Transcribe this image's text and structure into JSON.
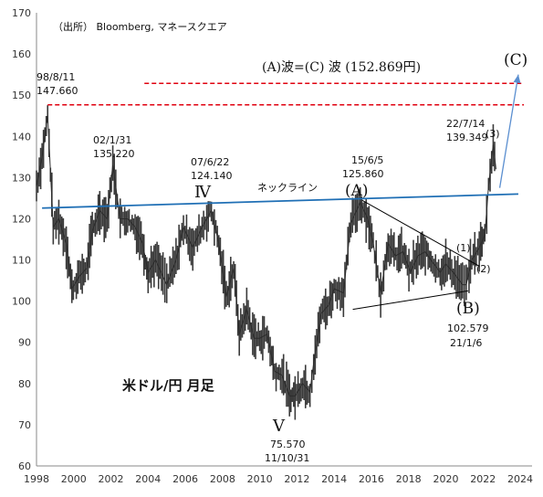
{
  "chart_data": {
    "type": "candlestick-line",
    "source_note": "（出所） Bloomberg, マネースクエア",
    "chart_label": "米ドル/円 月足",
    "xlim": [
      1998,
      2024
    ],
    "ylim": [
      60,
      170
    ],
    "x_ticks": [
      "1998",
      "2000",
      "2002",
      "2004",
      "2006",
      "2008",
      "2010",
      "2012",
      "2014",
      "2016",
      "2018",
      "2020",
      "2022",
      "2024"
    ],
    "y_ticks": [
      "60",
      "70",
      "80",
      "90",
      "100",
      "110",
      "120",
      "130",
      "140",
      "150",
      "160",
      "170"
    ],
    "grid": false,
    "price_series": [
      {
        "x": 1998.0,
        "y": 128
      },
      {
        "x": 1998.3,
        "y": 135
      },
      {
        "x": 1998.6,
        "y": 145
      },
      {
        "x": 1998.9,
        "y": 118
      },
      {
        "x": 1999.2,
        "y": 120
      },
      {
        "x": 1999.6,
        "y": 114
      },
      {
        "x": 1999.9,
        "y": 103
      },
      {
        "x": 2000.3,
        "y": 106
      },
      {
        "x": 2000.7,
        "y": 108
      },
      {
        "x": 2001.0,
        "y": 117
      },
      {
        "x": 2001.4,
        "y": 122
      },
      {
        "x": 2001.8,
        "y": 120
      },
      {
        "x": 2002.1,
        "y": 133
      },
      {
        "x": 2002.5,
        "y": 120
      },
      {
        "x": 2002.9,
        "y": 120
      },
      {
        "x": 2003.3,
        "y": 118
      },
      {
        "x": 2003.7,
        "y": 114
      },
      {
        "x": 2004.0,
        "y": 107
      },
      {
        "x": 2004.4,
        "y": 110
      },
      {
        "x": 2004.8,
        "y": 106
      },
      {
        "x": 2005.0,
        "y": 104
      },
      {
        "x": 2005.5,
        "y": 110
      },
      {
        "x": 2005.9,
        "y": 118
      },
      {
        "x": 2006.4,
        "y": 113
      },
      {
        "x": 2006.9,
        "y": 118
      },
      {
        "x": 2007.4,
        "y": 122
      },
      {
        "x": 2007.8,
        "y": 114
      },
      {
        "x": 2008.2,
        "y": 101
      },
      {
        "x": 2008.6,
        "y": 108
      },
      {
        "x": 2008.9,
        "y": 92
      },
      {
        "x": 2009.3,
        "y": 98
      },
      {
        "x": 2009.7,
        "y": 91
      },
      {
        "x": 2010.0,
        "y": 91
      },
      {
        "x": 2010.4,
        "y": 92
      },
      {
        "x": 2010.8,
        "y": 83
      },
      {
        "x": 2011.2,
        "y": 82
      },
      {
        "x": 2011.6,
        "y": 77
      },
      {
        "x": 2011.9,
        "y": 77
      },
      {
        "x": 2012.3,
        "y": 80
      },
      {
        "x": 2012.7,
        "y": 78
      },
      {
        "x": 2012.9,
        "y": 85
      },
      {
        "x": 2013.3,
        "y": 97
      },
      {
        "x": 2013.7,
        "y": 99
      },
      {
        "x": 2014.0,
        "y": 103
      },
      {
        "x": 2014.5,
        "y": 102
      },
      {
        "x": 2014.9,
        "y": 119
      },
      {
        "x": 2015.4,
        "y": 124
      },
      {
        "x": 2015.8,
        "y": 120
      },
      {
        "x": 2016.1,
        "y": 114
      },
      {
        "x": 2016.5,
        "y": 102
      },
      {
        "x": 2016.9,
        "y": 114
      },
      {
        "x": 2017.3,
        "y": 111
      },
      {
        "x": 2017.7,
        "y": 112
      },
      {
        "x": 2018.1,
        "y": 107
      },
      {
        "x": 2018.5,
        "y": 111
      },
      {
        "x": 2018.9,
        "y": 112
      },
      {
        "x": 2019.2,
        "y": 110
      },
      {
        "x": 2019.7,
        "y": 107
      },
      {
        "x": 2020.0,
        "y": 109
      },
      {
        "x": 2020.4,
        "y": 107
      },
      {
        "x": 2020.9,
        "y": 104
      },
      {
        "x": 2021.1,
        "y": 104
      },
      {
        "x": 2021.4,
        "y": 110
      },
      {
        "x": 2021.8,
        "y": 113
      },
      {
        "x": 2022.1,
        "y": 116
      },
      {
        "x": 2022.3,
        "y": 128
      },
      {
        "x": 2022.55,
        "y": 138
      },
      {
        "x": 2022.7,
        "y": 132
      }
    ],
    "horizontal_lines": [
      {
        "label": "(A)波=(C) 波 (152.869円)",
        "y": 152.869,
        "x_start": 2003.8,
        "x_end": 2024.2,
        "color": "#e0000f"
      },
      {
        "y": 147.66,
        "x_start": 1998.6,
        "x_end": 2024.2,
        "color": "#e0000f"
      }
    ],
    "trend_lines": [
      {
        "label": "ネックライン",
        "x1": 1998.3,
        "y1": 122.6,
        "x2": 2023.9,
        "y2": 126.0,
        "color": "#1f6fb5"
      },
      {
        "x1": 2015.5,
        "y1": 124.5,
        "x2": 2021.8,
        "y2": 108.5,
        "color": "#000000"
      },
      {
        "x1": 2015.0,
        "y1": 98.0,
        "x2": 2021.2,
        "y2": 102.5,
        "color": "#000000"
      }
    ],
    "arrow": {
      "label": "(C)",
      "x1": 2022.9,
      "y1": 127.5,
      "x2": 2023.9,
      "y2": 155.0,
      "color": "#5b8fd0"
    },
    "annotations": [
      {
        "id": "a98",
        "date": "98/8/11",
        "value": "147.660",
        "x": 1998.6,
        "y": 147.66
      },
      {
        "id": "a02",
        "date": "02/1/31",
        "value": "135.220",
        "x": 2002.1,
        "y": 135.22
      },
      {
        "id": "a07",
        "date": "07/6/22",
        "value": "124.140",
        "x": 2007.5,
        "y": 124.14
      },
      {
        "id": "a15",
        "date": "15/6/5",
        "value": "125.860",
        "x": 2015.4,
        "y": 125.86
      },
      {
        "id": "a22",
        "date": "22/7/14",
        "value": "139.349",
        "x": 2022.55,
        "y": 139.349
      },
      {
        "id": "a21",
        "date": "21/1/6",
        "value": "102.579",
        "x": 2021.0,
        "y": 102.579
      },
      {
        "id": "a11",
        "date": "11/10/31",
        "value": "75.570",
        "x": 2011.8,
        "y": 75.57
      }
    ],
    "wave_labels": [
      "Ⅳ",
      "Ⅴ",
      "(A)",
      "(B)",
      "(1)",
      "(2)",
      "(3)"
    ]
  }
}
